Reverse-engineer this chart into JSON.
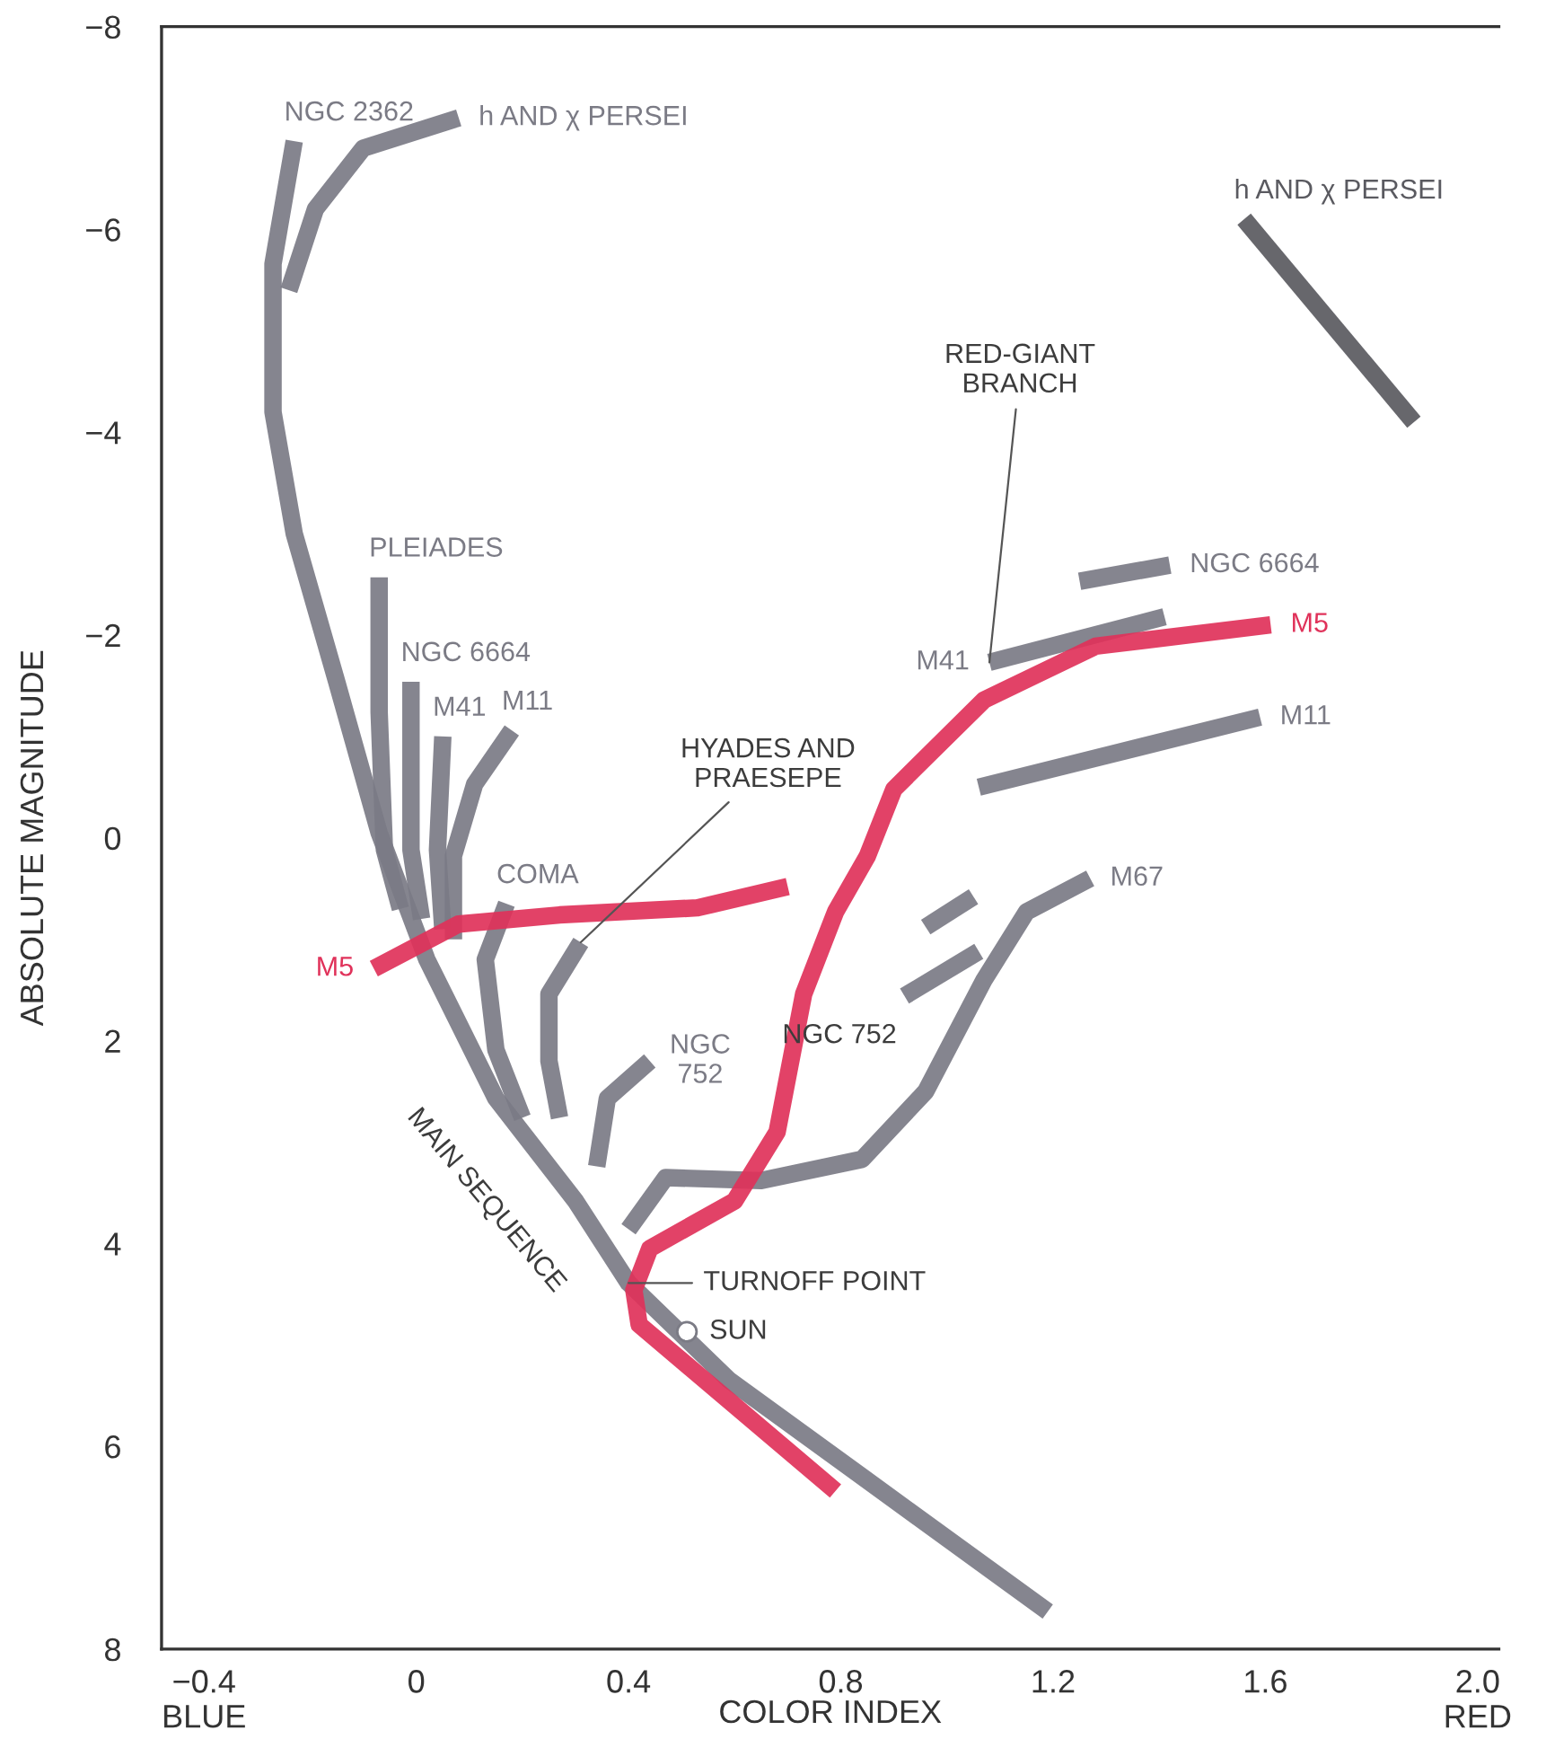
{
  "chart_data": {
    "type": "line",
    "xlabel": "COLOR INDEX",
    "ylabel": "ABSOLUTE MAGNITUDE",
    "xlim": [
      -0.48,
      2.04
    ],
    "ylim": [
      8,
      -8
    ],
    "xticks": [
      {
        "value": -0.4,
        "label": "−0.4\nBLUE"
      },
      0,
      0.4,
      0.8,
      1.2,
      1.6,
      {
        "value": 2.0,
        "label": "2.0\nRED"
      }
    ],
    "yticks": [
      {
        "value": -8,
        "label": "−8"
      },
      {
        "value": -6,
        "label": "−6"
      },
      {
        "value": -4,
        "label": "−4"
      },
      {
        "value": -2,
        "label": "−2"
      },
      0,
      2,
      4,
      6,
      8
    ],
    "series": [
      {
        "name": "NGC 2362",
        "color": "#7b7b85",
        "x": [
          1.19,
          0.84,
          0.59,
          0.4,
          0.3,
          0.15,
          0.02,
          -0.07,
          -0.15,
          -0.23,
          -0.27,
          -0.27,
          -0.23
        ],
        "values": [
          7.63,
          6.3,
          5.35,
          4.39,
          3.58,
          2.57,
          1.2,
          -0.05,
          -1.54,
          -3.0,
          -4.2,
          -5.66,
          -6.87
        ]
      },
      {
        "name": "h AND χ PERSEI",
        "color": "#7b7b85",
        "x": [
          -0.24,
          -0.19,
          -0.1,
          0.08
        ],
        "values": [
          -5.4,
          -6.2,
          -6.8,
          -7.1
        ]
      },
      {
        "name": "PLEIADES",
        "color": "#7b7b85",
        "x": [
          -0.03,
          -0.06,
          -0.07,
          -0.07
        ],
        "values": [
          0.7,
          0.12,
          -1.24,
          -2.57
        ]
      },
      {
        "name": "NGC 6664",
        "color": "#7b7b85",
        "x": [
          0.01,
          -0.01,
          -0.01
        ],
        "values": [
          0.8,
          0.12,
          -1.54
        ]
      },
      {
        "name": "M41",
        "color": "#7b7b85",
        "x": [
          0.05,
          0.04,
          0.05
        ],
        "values": [
          0.9,
          0.12,
          -1.0
        ]
      },
      {
        "name": "M11",
        "color": "#7b7b85",
        "x": [
          0.07,
          0.07,
          0.11,
          0.18
        ],
        "values": [
          1.0,
          0.18,
          -0.53,
          -1.06
        ]
      },
      {
        "name": "COMA",
        "color": "#7b7b85",
        "x": [
          0.2,
          0.15,
          0.13,
          0.17
        ],
        "values": [
          2.76,
          2.09,
          1.2,
          0.65
        ]
      },
      {
        "color": "#7b7b85",
        "x": [
          0.27,
          0.25,
          0.25,
          0.31
        ],
        "values": [
          2.76,
          2.2,
          1.54,
          1.03
        ]
      },
      {
        "name": "NGC\n752",
        "color": "#7b7b85",
        "x": [
          0.34,
          0.36,
          0.44
        ],
        "values": [
          3.24,
          2.57,
          2.2
        ]
      },
      {
        "name": "M67",
        "color": "#7b7b85",
        "x": [
          0.4,
          0.47,
          0.65,
          0.84,
          0.96,
          1.07,
          1.15,
          1.27
        ],
        "values": [
          3.86,
          3.35,
          3.38,
          3.17,
          2.5,
          1.4,
          0.73,
          0.4
        ]
      },
      {
        "color": "#7b7b85",
        "x": [
          0.96,
          1.05
        ],
        "values": [
          0.88,
          0.58
        ]
      },
      {
        "color": "#7b7b85",
        "x": [
          1.06,
          0.92
        ],
        "values": [
          1.12,
          1.56
        ]
      },
      {
        "name": "M41",
        "color": "#7b7b85",
        "x": [
          1.41,
          1.08
        ],
        "values": [
          -2.18,
          -1.73
        ]
      },
      {
        "name": "NGC 6664",
        "color": "#7b7b85",
        "x": [
          1.25,
          1.42
        ],
        "values": [
          -2.53,
          -2.69
        ]
      },
      {
        "name": "M11",
        "color": "#7b7b85",
        "x": [
          1.06,
          1.59
        ],
        "values": [
          -0.5,
          -1.19
        ]
      },
      {
        "name": "h AND χ PERSEI",
        "color": "#5a5a60",
        "x": [
          1.88,
          1.56
        ],
        "values": [
          -4.1,
          -6.1
        ]
      },
      {
        "name": "M5",
        "color": "#e0325a",
        "x": [
          0.7,
          0.53,
          0.27,
          0.08,
          -0.08
        ],
        "values": [
          0.48,
          0.69,
          0.76,
          0.85,
          1.29
        ]
      },
      {
        "name": "M5",
        "color": "#e0325a",
        "x": [
          0.79,
          0.42,
          0.41,
          0.44,
          0.6,
          0.68,
          0.73,
          0.79,
          0.85,
          0.9,
          1.07,
          1.28,
          1.61
        ],
        "values": [
          6.44,
          4.8,
          4.46,
          4.05,
          3.58,
          2.9,
          1.54,
          0.73,
          0.18,
          -0.48,
          -1.36,
          -1.89,
          -2.1
        ]
      },
      {
        "type": "scatter",
        "color": "#ffffff",
        "x": [
          0.51
        ],
        "values": [
          4.87
        ]
      }
    ],
    "annotations": [
      {
        "text": "HYADES AND\nPRAESEPE",
        "x": 0.31,
        "y": 1.03
      },
      {
        "text": "RED-GIANT\nBRANCH",
        "x": 1.08,
        "y": -1.73
      },
      {
        "text": "MAIN SEQUENCE",
        "x": 0.15,
        "y": 2.57
      },
      {
        "text": "TURNOFF POINT",
        "x": 0.4,
        "y": 4.39
      },
      {
        "text": "NGC 752",
        "x": 0.92,
        "y": 1.56
      },
      {
        "text": "SUN",
        "x": 0.51,
        "y": 4.87
      }
    ]
  }
}
